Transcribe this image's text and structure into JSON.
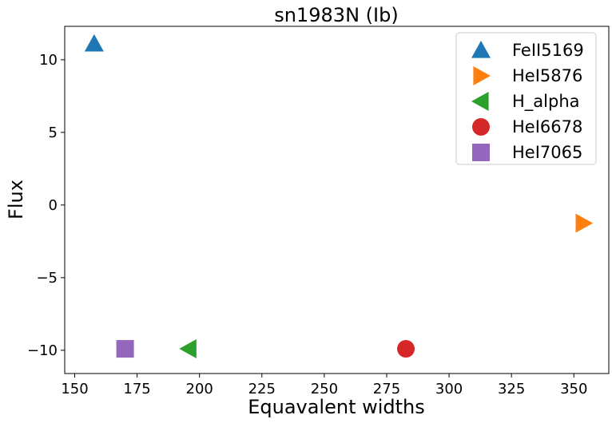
{
  "chart_data": {
    "type": "scatter",
    "title": "sn1983N (Ib)",
    "xlabel": "Equavalent widths",
    "ylabel": "Flux",
    "xlim": [
      146,
      364
    ],
    "ylim": [
      -11.6,
      12.3
    ],
    "xticks": [
      150,
      175,
      200,
      225,
      250,
      275,
      300,
      325,
      350
    ],
    "xtick_labels": [
      "150",
      "175",
      "200",
      "225",
      "250",
      "275",
      "300",
      "325",
      "350"
    ],
    "yticks": [
      10,
      5,
      0,
      -5,
      -10
    ],
    "ytick_labels": [
      "10",
      "5",
      "0",
      "−5",
      "−10"
    ],
    "grid": false,
    "legend_position": "top-right",
    "series": [
      {
        "name": "FeII5169",
        "marker": "triangle-up",
        "color": "#1f77b4",
        "x": [
          157.8
        ],
        "y": [
          11.1
        ]
      },
      {
        "name": "HeI5876",
        "marker": "triangle-right",
        "color": "#ff7f0e",
        "x": [
          353.8
        ],
        "y": [
          -1.25
        ]
      },
      {
        "name": "H_alpha",
        "marker": "triangle-left",
        "color": "#2ca02c",
        "x": [
          195.7
        ],
        "y": [
          -9.9
        ]
      },
      {
        "name": "HeI6678",
        "marker": "circle",
        "color": "#d62728",
        "x": [
          282.7
        ],
        "y": [
          -9.9
        ]
      },
      {
        "name": "HeI7065",
        "marker": "square",
        "color": "#9467bd",
        "x": [
          170.2
        ],
        "y": [
          -9.9
        ]
      }
    ]
  }
}
